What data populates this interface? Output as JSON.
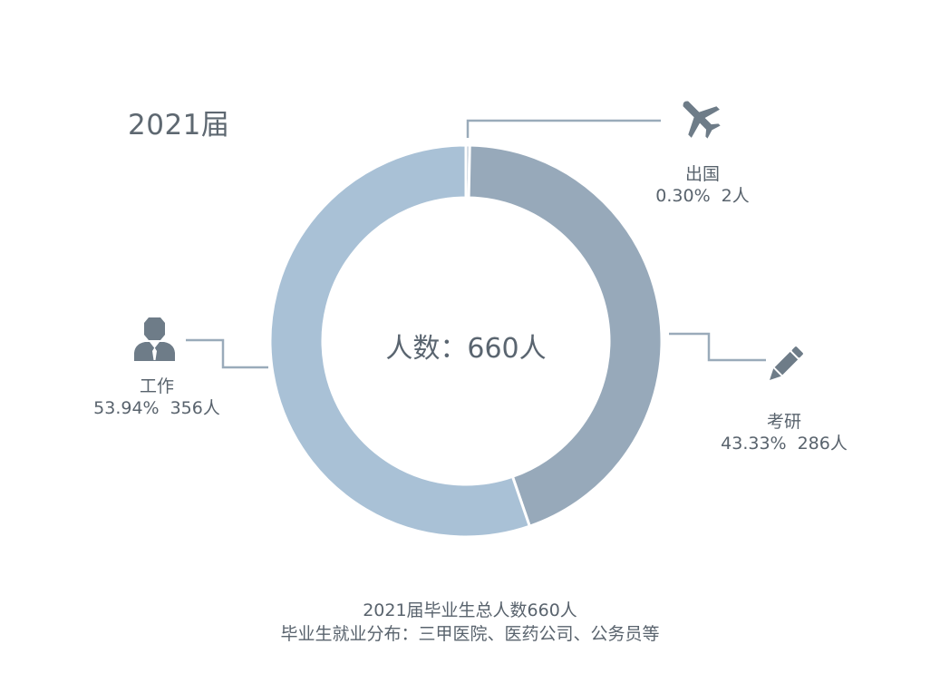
{
  "title": "2021届",
  "center_text": "人数：660人",
  "colors": {
    "abroad": "#aebdcc",
    "postgrad": "#97a9ba",
    "work": "#a9c1d6",
    "line": "#9aabba",
    "icon": "#6e7c88"
  },
  "categories": [
    {
      "name": "出国",
      "percent": "0.30%",
      "count": "2人",
      "icon": "airplane-icon"
    },
    {
      "name": "考研",
      "percent": "43.33%",
      "count": "286人",
      "icon": "pencil-icon"
    },
    {
      "name": "工作",
      "percent": "53.94%",
      "count": "356人",
      "icon": "businessman-icon"
    }
  ],
  "footnote": {
    "line1": "2021届毕业生总人数660人",
    "line2": "毕业生就业分布：三甲医院、医药公司、公务员等"
  },
  "chart_data": {
    "type": "pie",
    "donut": true,
    "title": "2021届",
    "center_text": "人数：660人",
    "total": 660,
    "categories": [
      "出国",
      "考研",
      "工作"
    ],
    "values": [
      2,
      286,
      356
    ],
    "percent_labels": [
      "0.30%",
      "43.33%",
      "53.94%"
    ],
    "count_labels": [
      "2人",
      "286人",
      "356人"
    ],
    "legend": "none"
  }
}
